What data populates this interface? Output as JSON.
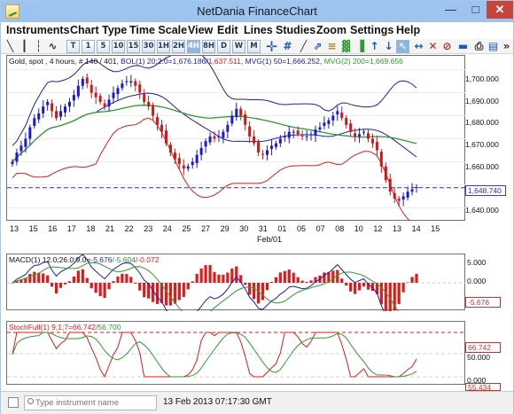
{
  "window": {
    "title": "NetDania FinanceChart",
    "minimize": "—",
    "maximize": "□",
    "close": "✕"
  },
  "menu": [
    "Instruments",
    "Chart Type",
    "Time Scale",
    "View",
    "Edit",
    "Lines",
    "Studies",
    "Zoom",
    "Settings",
    "Help"
  ],
  "toolbar": {
    "timescales": [
      "T",
      "1",
      "5",
      "10",
      "15",
      "30",
      "1H",
      "2H",
      "4H",
      "8H",
      "D",
      "W",
      "M"
    ],
    "active_timescale": "4H",
    "more": "»"
  },
  "price_panel": {
    "info": {
      "instrument": "Gold, spot , 4 hours, # 140 / 401,",
      "bol": " BOL(1) 20;2.0=1,676.186/",
      "bol_low": "1,637.511",
      "mvg50": ", MVG(1) 50=1,666.252,",
      "mvg200": " MVG(2) 200=1,669.656"
    },
    "y_ticks": [
      "1,700.000",
      "1,690.000",
      "1,680.000",
      "1,670.000",
      "1,660.000",
      "1,650.000",
      "1,640.000"
    ],
    "last_price": "1,648.740",
    "x_ticks": [
      "13",
      "15",
      "16",
      "17",
      "18",
      "21",
      "22",
      "23",
      "24",
      "25",
      "27",
      "29",
      "30",
      "31",
      "01",
      "05",
      "07",
      "08",
      "10",
      "12",
      "13",
      "14",
      "15"
    ],
    "x_sublabel": "Feb/01"
  },
  "macd_panel": {
    "info": {
      "label": "MACD(1) 12.0;26.0;9.0=",
      "v1": "-5.676",
      "v2": "/-5.604",
      "v3": "/-0.072"
    },
    "y_ticks": [
      "5.000",
      "0.000"
    ],
    "badge": "-5.676"
  },
  "stoch_panel": {
    "info": {
      "label": "StochFull(1) 9;1;7=66.742",
      "v2": "/56.700"
    },
    "y_ticks": [
      "50.000",
      "0.000"
    ],
    "badge": "66.742",
    "badge2": "55.434"
  },
  "status": {
    "search_placeholder": "Type instrument name",
    "datetime": "13 Feb 2013 07:17:30 GMT"
  },
  "colors": {
    "up": "#1a1ad6",
    "down": "#d01818",
    "bollinger": "#1e1ea8",
    "ma50": "#2e9b2e",
    "ma200": "#e01a1a",
    "last_line": "#2b2bd8"
  },
  "chart_data": {
    "type": "line",
    "title": "",
    "ylim": [
      1634,
      1706
    ],
    "series": [
      {
        "name": "Gold, spot , 4 hours",
        "values": [
          1660,
          1664,
          1667,
          1670,
          1675,
          1679,
          1681,
          1684,
          1686,
          1682,
          1679,
          1682,
          1684,
          1686,
          1689,
          1693,
          1696,
          1694,
          1690,
          1688,
          1686,
          1684,
          1687,
          1690,
          1692,
          1694,
          1695,
          1695,
          1693,
          1690,
          1686,
          1684,
          1680,
          1676,
          1673,
          1668,
          1664,
          1661,
          1659,
          1657,
          1658,
          1660,
          1663,
          1666,
          1669,
          1671,
          1670,
          1671,
          1673,
          1676,
          1680,
          1683,
          1680,
          1676,
          1671,
          1668,
          1664,
          1663,
          1665,
          1667,
          1668,
          1670,
          1671,
          1673,
          1673,
          1672,
          1671,
          1671,
          1672,
          1674,
          1675,
          1677,
          1678,
          1680,
          1682,
          1679,
          1676,
          1673,
          1671,
          1672,
          1673,
          1670,
          1668,
          1665,
          1658,
          1652,
          1647,
          1644,
          1643,
          1645,
          1647,
          1648,
          1649
        ]
      }
    ]
  }
}
